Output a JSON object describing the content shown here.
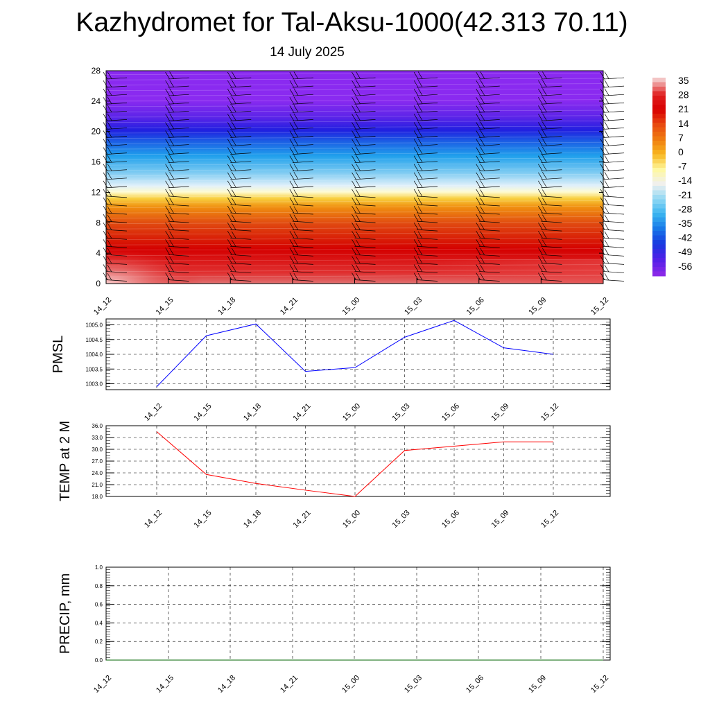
{
  "page": {
    "title": "Kazhydromet for Tal-Aksu-1000(42.313 70.11)",
    "subtitle": "14 July 2025"
  },
  "chart_data": [
    {
      "type": "heatmap",
      "title": "",
      "xlabel": "",
      "ylabel": "",
      "x_ticks": [
        "14_12",
        "14_15",
        "14_18",
        "14_21",
        "15_00",
        "15_03",
        "15_06",
        "15_09",
        "15_12"
      ],
      "y_ticks": [
        "0",
        "4",
        "8",
        "12",
        "16",
        "20",
        "24",
        "28"
      ],
      "ylim": [
        0,
        28
      ],
      "colorbar": {
        "labels": [
          "35",
          "28",
          "21",
          "14",
          "7",
          "0",
          "-7",
          "-14",
          "-21",
          "-28",
          "-35",
          "-42",
          "-49",
          "-56"
        ],
        "stops": [
          "#f3c4c4",
          "#e02020",
          "#d80000",
          "#e84a10",
          "#f07c10",
          "#f8b820",
          "#fff8a0",
          "#f0f0f0",
          "#90d8f4",
          "#3ab4f0",
          "#1878e8",
          "#1838e0",
          "#5020e8",
          "#8828e8"
        ]
      },
      "wind_barbs": true
    },
    {
      "type": "line",
      "ylabel": "PMSL",
      "x": [
        "14_12",
        "14_15",
        "14_18",
        "14_21",
        "15_00",
        "15_03",
        "15_06",
        "15_09",
        "15_12"
      ],
      "series": [
        {
          "color": "#0000ff",
          "values": [
            1002.9,
            1004.63,
            1005.03,
            1003.42,
            1003.55,
            1004.58,
            1005.15,
            1004.22,
            1004.0
          ]
        }
      ],
      "y_ticks": [
        "1003.0",
        "1003.5",
        "1004.0",
        "1004.5",
        "1005.0"
      ],
      "ylim": [
        1002.8,
        1005.2
      ],
      "grid": true
    },
    {
      "type": "line",
      "ylabel": "TEMP at 2 M",
      "x": [
        "14_12",
        "14_15",
        "14_18",
        "14_21",
        "15_00",
        "15_03",
        "15_06",
        "15_09",
        "15_12"
      ],
      "series": [
        {
          "color": "#ff0000",
          "values": [
            34.5,
            23.6,
            21.3,
            19.6,
            18.0,
            29.7,
            30.8,
            31.9,
            31.9
          ]
        }
      ],
      "y_ticks": [
        "18.0",
        "21.0",
        "24.0",
        "27.0",
        "30.0",
        "33.0",
        "36.0"
      ],
      "ylim": [
        18,
        36
      ],
      "grid": true
    },
    {
      "type": "line",
      "ylabel": "PRECIP, mm",
      "x": [
        "14_12",
        "14_15",
        "14_18",
        "14_21",
        "15_00",
        "15_03",
        "15_06",
        "15_09",
        "15_12"
      ],
      "series": [
        {
          "color": "#006400",
          "values": [
            0,
            0,
            0,
            0,
            0,
            0,
            0,
            0,
            0
          ]
        }
      ],
      "y_ticks": [
        "0.0",
        "0.2",
        "0.4",
        "0.6",
        "0.8",
        "1.0"
      ],
      "ylim": [
        0,
        1
      ],
      "grid": true
    }
  ]
}
